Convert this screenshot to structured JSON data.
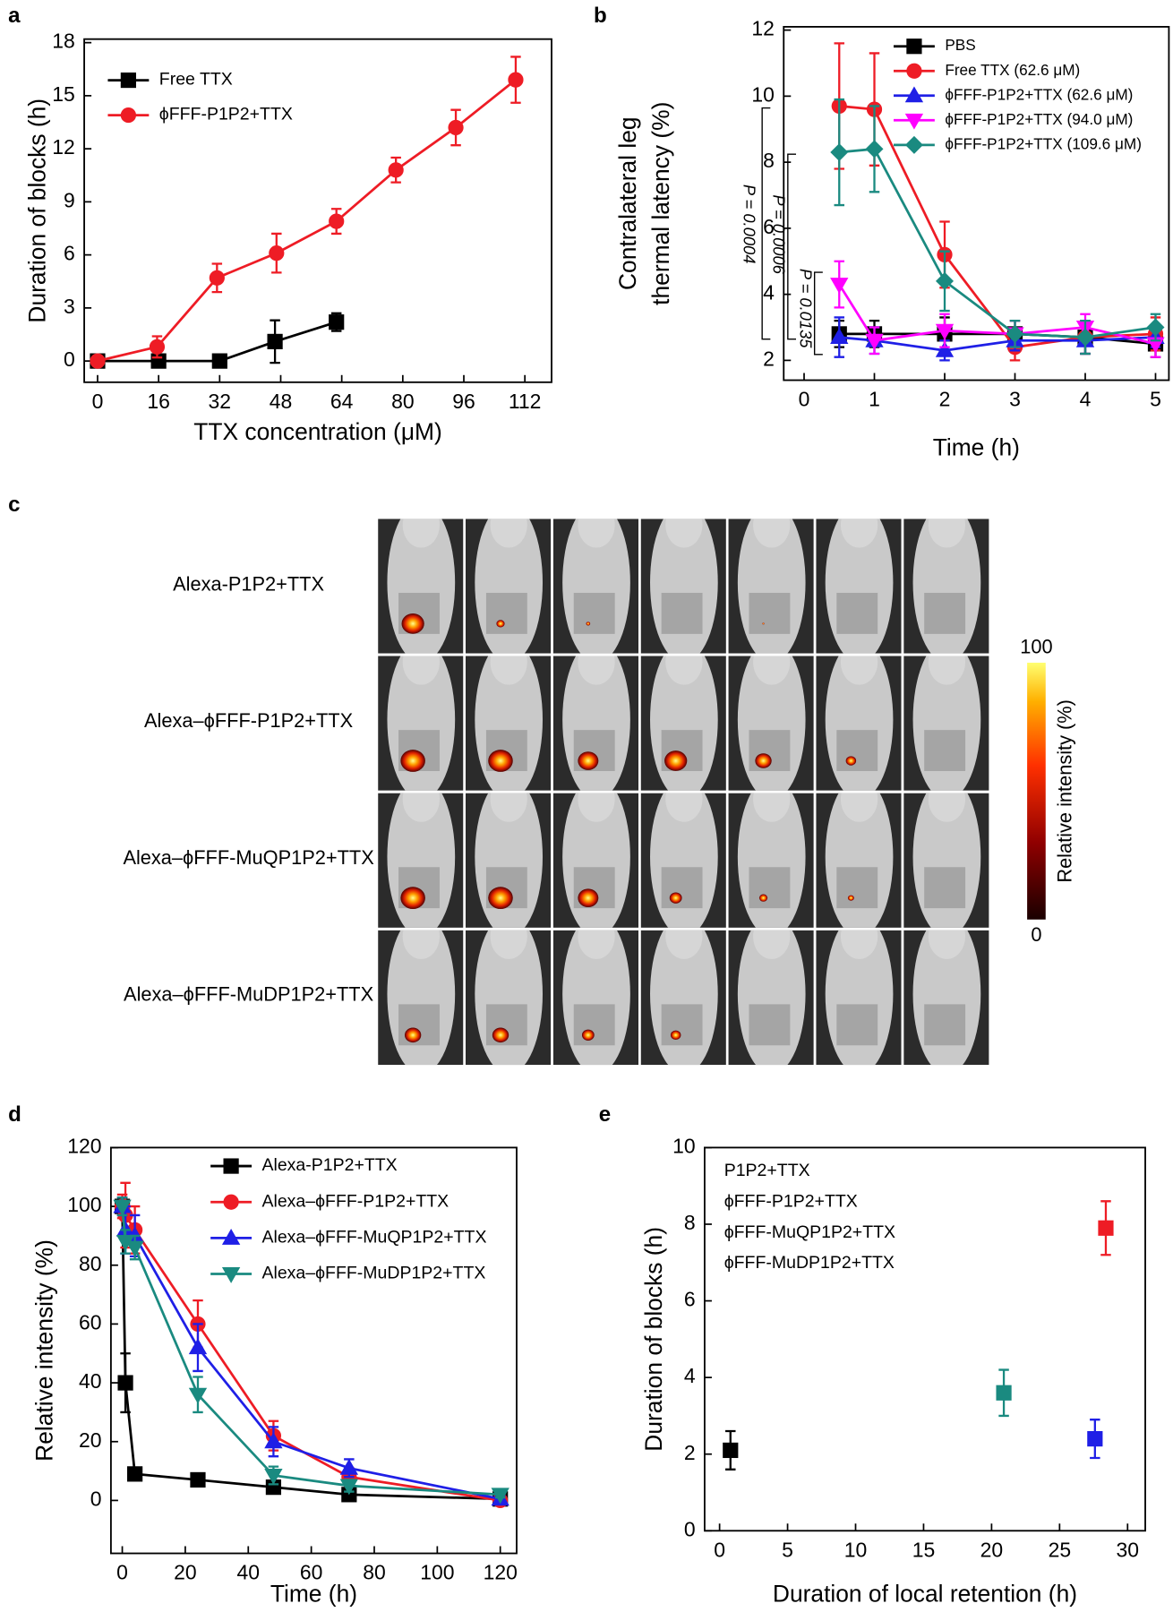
{
  "chart_data": [
    {
      "type": "line",
      "panel_label": "a",
      "xlabel": "TTX concentration (μM)",
      "ylabel": "Duration of blocks (h)",
      "xlim": [
        -3.5,
        119
      ],
      "ylim": [
        -1.2,
        18.2
      ],
      "xticks": [
        0,
        16,
        32,
        48,
        64,
        80,
        96,
        112
      ],
      "yticks": [
        0,
        3,
        6,
        9,
        12,
        15,
        18
      ],
      "legend_markers": true,
      "legend_text_colored": false,
      "series": [
        {
          "name": "Free TTX",
          "color": "#000000",
          "marker": "square",
          "x": [
            0,
            16,
            32,
            46.5,
            62.6
          ],
          "values": [
            0,
            0,
            0,
            1.1,
            2.2
          ],
          "errors": [
            0.1,
            0.2,
            0.1,
            1.2,
            0.5
          ]
        },
        {
          "name": "ϕFFF-P1P2+TTX",
          "color": "#ee1c25",
          "marker": "circle",
          "x": [
            0,
            15.6,
            31.3,
            46.9,
            62.6,
            78.2,
            93.9,
            109.6
          ],
          "values": [
            0,
            0.8,
            4.7,
            6.1,
            7.9,
            10.8,
            13.2,
            15.9
          ],
          "errors": [
            0.2,
            0.6,
            0.8,
            1.1,
            0.7,
            0.7,
            1.0,
            1.3
          ]
        }
      ]
    },
    {
      "type": "line",
      "panel_label": "b",
      "xlabel": "Time (h)",
      "ylabel": [
        "Contralateral leg",
        "thermal latency (%)"
      ],
      "xlim": [
        -0.29,
        5.19
      ],
      "ylim": [
        1.4,
        12.1
      ],
      "xticks": [
        0,
        1,
        2,
        3,
        4,
        5
      ],
      "yticks": [
        2,
        4,
        6,
        8,
        10,
        12
      ],
      "legend_markers": true,
      "legend_text_colored": false,
      "x": [
        0.5,
        1,
        2,
        3,
        4,
        5
      ],
      "series": [
        {
          "name": "PBS",
          "color": "#000000",
          "marker": "square",
          "values": [
            2.8,
            2.8,
            2.8,
            2.8,
            2.7,
            2.5
          ],
          "errors": [
            0.4,
            0.4,
            0.5,
            0.4,
            0.5,
            0.4
          ]
        },
        {
          "name": "Free TTX (62.6 μM)",
          "color": "#ee1c25",
          "marker": "circle",
          "values": [
            9.7,
            9.6,
            5.2,
            2.4,
            2.7,
            2.8
          ],
          "errors": [
            1.9,
            1.7,
            1.0,
            0.4,
            0.5,
            0.5
          ]
        },
        {
          "name": "ϕFFF-P1P2+TTX (62.6 μM)",
          "color": "#1f1fe6",
          "marker": "triangle-up",
          "values": [
            2.7,
            2.6,
            2.3,
            2.6,
            2.6,
            2.7
          ],
          "errors": [
            0.6,
            0.4,
            0.3,
            0.3,
            0.4,
            0.3
          ]
        },
        {
          "name": "ϕFFF-P1P2+TTX (94.0 μM)",
          "color": "#ff00ff",
          "marker": "triangle-down",
          "values": [
            4.3,
            2.6,
            2.9,
            2.8,
            3.0,
            2.5
          ],
          "errors": [
            0.7,
            0.4,
            0.5,
            0.4,
            0.4,
            0.4
          ]
        },
        {
          "name": "ϕFFF-P1P2+TTX (109.6 μM)",
          "color": "#1a8a80",
          "marker": "diamond",
          "values": [
            8.3,
            8.4,
            4.4,
            2.8,
            2.7,
            3.0
          ],
          "errors": [
            1.6,
            1.3,
            0.9,
            0.4,
            0.5,
            0.4
          ]
        }
      ],
      "annotations": [
        "P = 0.0004",
        "P = 0.0006",
        "P = 0.0135"
      ]
    },
    {
      "type": "line",
      "panel_label": "d",
      "xlabel": "Time (h)",
      "ylabel": "Relative intensity (%)",
      "xlim": [
        -3.6,
        125.2
      ],
      "ylim": [
        -18,
        120
      ],
      "xticks": [
        0,
        20,
        40,
        60,
        80,
        100,
        120
      ],
      "yticks": [
        0,
        20,
        40,
        60,
        80,
        100,
        120
      ],
      "legend_markers": true,
      "legend_text_colored": true,
      "x": [
        0,
        1,
        4,
        24,
        48,
        72,
        120
      ],
      "series": [
        {
          "name": "Alexa-P1P2+TTX",
          "color": "#000000",
          "marker": "square",
          "values": [
            100,
            40,
            9,
            7,
            4.5,
            2,
            0.5
          ],
          "errors": [
            3,
            10,
            1,
            2,
            1.5,
            1,
            0.5
          ]
        },
        {
          "name": "Alexa–ϕFFF-P1P2+TTX",
          "color": "#ee1c25",
          "marker": "circle",
          "values": [
            100,
            97,
            92,
            60,
            22,
            8,
            0
          ],
          "errors": [
            4,
            11,
            8,
            8,
            5,
            3,
            1
          ]
        },
        {
          "name": "Alexa–ϕFFF-MuQP1P2+TTX",
          "color": "#1f1fe6",
          "marker": "triangle-up",
          "values": [
            100,
            92,
            90,
            52,
            20,
            11,
            0.5
          ],
          "errors": [
            3,
            8,
            7,
            8,
            5,
            3,
            1
          ]
        },
        {
          "name": "Alexa–ϕFFF-MuDP1P2+TTX",
          "color": "#1a8a80",
          "marker": "triangle-down",
          "values": [
            100,
            88,
            86,
            36,
            8.5,
            5,
            2
          ],
          "errors": [
            3,
            4,
            4,
            6,
            3,
            2,
            1
          ]
        }
      ]
    },
    {
      "type": "scatter",
      "panel_label": "e",
      "xlabel": "Duration of local retention (h)",
      "ylabel": "Duration of blocks (h)",
      "xlim": [
        -1.1,
        31.3
      ],
      "ylim": [
        0,
        10
      ],
      "xticks": [
        0,
        5,
        10,
        15,
        20,
        25,
        30
      ],
      "yticks": [
        0,
        2,
        4,
        6,
        8,
        10
      ],
      "legend_markers": false,
      "legend_text_colored": true,
      "series": [
        {
          "name": "P1P2+TTX",
          "color": "#000000",
          "marker": "square",
          "x": [
            0.8
          ],
          "values": [
            2.1
          ],
          "errors": [
            0.5
          ]
        },
        {
          "name": "ϕFFF-P1P2+TTX",
          "color": "#ee1c25",
          "marker": "square",
          "x": [
            28.4
          ],
          "values": [
            7.9
          ],
          "errors": [
            0.7
          ]
        },
        {
          "name": "ϕFFF-MuQP1P2+TTX",
          "color": "#1f1fe6",
          "marker": "square",
          "x": [
            27.6
          ],
          "values": [
            2.4
          ],
          "errors": [
            0.5
          ]
        },
        {
          "name": "ϕFFF-MuDP1P2+TTX",
          "color": "#1a8a80",
          "marker": "square",
          "x": [
            20.9
          ],
          "values": [
            3.6
          ],
          "errors": [
            0.6
          ]
        }
      ]
    }
  ],
  "panel_c": {
    "panel_label": "c",
    "rows": [
      "Alexa-P1P2+TTX",
      "Alexa–ϕFFF-P1P2+TTX",
      "Alexa–ϕFFF-MuQP1P2+TTX",
      "Alexa–ϕFFF-MuDP1P2+TTX"
    ],
    "colorbar": {
      "label": "Relative intensity (%)",
      "ticks": [
        0,
        100
      ]
    }
  }
}
